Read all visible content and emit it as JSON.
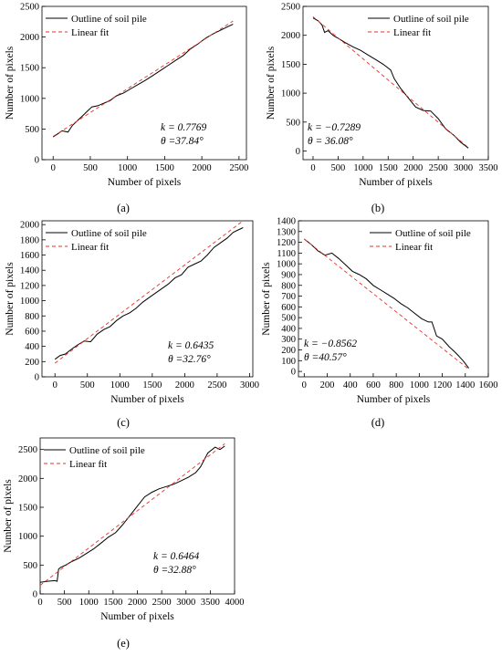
{
  "chart_data": [
    {
      "panel": "(a)",
      "type": "line",
      "xlabel": "Number of pixels",
      "ylabel": "Number of pixels",
      "xlim": [
        -150,
        2600
      ],
      "ylim": [
        0,
        2500
      ],
      "xticks": [
        0,
        500,
        1000,
        1500,
        2000,
        2500
      ],
      "yticks": [
        0,
        500,
        1000,
        1500,
        2000,
        2500
      ],
      "legend": [
        "Outline of soil pile",
        "Linear fit"
      ],
      "legend_position": "top-left",
      "annotation": {
        "k": "k = 0.7769",
        "theta": "θ =37.84°"
      },
      "series": [
        {
          "name": "Outline of soil pile",
          "x": [
            0,
            60,
            120,
            200,
            260,
            330,
            400,
            460,
            520,
            600,
            680,
            760,
            850,
            950,
            1050,
            1150,
            1250,
            1350,
            1450,
            1550,
            1650,
            1750,
            1850,
            1950,
            2050,
            2150,
            2250,
            2350,
            2420
          ],
          "y": [
            370,
            420,
            470,
            450,
            560,
            640,
            720,
            790,
            860,
            880,
            920,
            960,
            1040,
            1090,
            1160,
            1230,
            1300,
            1380,
            1460,
            1540,
            1620,
            1700,
            1810,
            1890,
            1980,
            2050,
            2110,
            2170,
            2210
          ]
        },
        {
          "name": "Linear fit",
          "x": [
            0,
            2420
          ],
          "y": [
            380,
            2260
          ]
        }
      ]
    },
    {
      "panel": "(b)",
      "type": "line",
      "xlabel": "Number of pixels",
      "ylabel": "Number of pixels",
      "xlim": [
        -200,
        3500
      ],
      "ylim": [
        -150,
        2500
      ],
      "xticks": [
        0,
        500,
        1000,
        1500,
        2000,
        2500,
        3000,
        3500
      ],
      "yticks": [
        0,
        500,
        1000,
        1500,
        2000,
        2500
      ],
      "legend": [
        "Outline of soil pile",
        "Linear fit"
      ],
      "legend_position": "top-right",
      "annotation": {
        "k": "k = −0.7289",
        "theta": "θ = 36.08°"
      },
      "series": [
        {
          "name": "Outline of soil pile",
          "x": [
            0,
            100,
            180,
            230,
            300,
            400,
            500,
            650,
            800,
            950,
            1100,
            1250,
            1400,
            1550,
            1620,
            1750,
            1900,
            2050,
            2200,
            2350,
            2500,
            2650,
            2800,
            2950,
            3100
          ],
          "y": [
            2300,
            2250,
            2180,
            2050,
            2080,
            2000,
            1950,
            1870,
            1800,
            1740,
            1660,
            1580,
            1500,
            1400,
            1250,
            1080,
            920,
            760,
            700,
            690,
            560,
            380,
            280,
            150,
            50
          ]
        },
        {
          "name": "Linear fit",
          "x": [
            0,
            3100
          ],
          "y": [
            2320,
            60
          ]
        }
      ]
    },
    {
      "panel": "(c)",
      "type": "line",
      "xlabel": "Number of pixels",
      "ylabel": "Number of pixels",
      "xlim": [
        -200,
        3050
      ],
      "ylim": [
        0,
        2050
      ],
      "xticks": [
        0,
        500,
        1000,
        1500,
        2000,
        2500,
        3000
      ],
      "yticks": [
        0,
        200,
        400,
        600,
        800,
        1000,
        1200,
        1400,
        1600,
        1800,
        2000
      ],
      "legend": [
        "Outline of soil pile",
        "Linear fit"
      ],
      "legend_position": "top-left",
      "annotation": {
        "k": "k = 0.6435",
        "theta": "θ =32.76°"
      },
      "series": [
        {
          "name": "Outline of soil pile",
          "x": [
            0,
            80,
            160,
            250,
            350,
            450,
            550,
            650,
            750,
            850,
            950,
            1050,
            1150,
            1250,
            1350,
            1450,
            1550,
            1650,
            1750,
            1850,
            1950,
            2050,
            2150,
            2250,
            2350,
            2450,
            2550,
            2650,
            2750,
            2900
          ],
          "y": [
            230,
            280,
            300,
            360,
            420,
            470,
            460,
            560,
            620,
            660,
            740,
            800,
            840,
            900,
            980,
            1040,
            1100,
            1160,
            1220,
            1300,
            1340,
            1440,
            1480,
            1520,
            1600,
            1700,
            1760,
            1820,
            1900,
            1960
          ]
        },
        {
          "name": "Linear fit",
          "x": [
            0,
            2900
          ],
          "y": [
            180,
            2050
          ]
        }
      ]
    },
    {
      "panel": "(d)",
      "type": "line",
      "xlabel": "Number of pixels",
      "ylabel": "Number of pixels",
      "xlim": [
        -50,
        1600
      ],
      "ylim": [
        -50,
        1400
      ],
      "xticks": [
        0,
        200,
        400,
        600,
        800,
        1000,
        1200,
        1400,
        1600
      ],
      "yticks": [
        0,
        100,
        200,
        300,
        400,
        500,
        600,
        700,
        800,
        900,
        1000,
        1100,
        1200,
        1300,
        1400
      ],
      "legend": [
        "Outline of soil pile",
        "Linear fit"
      ],
      "legend_position": "top-right",
      "annotation": {
        "k": "k = −0.8562",
        "theta": "θ =40.57°"
      },
      "series": [
        {
          "name": "Outline of soil pile",
          "x": [
            0,
            60,
            120,
            180,
            240,
            300,
            360,
            420,
            480,
            540,
            600,
            660,
            720,
            780,
            840,
            900,
            960,
            1020,
            1080,
            1110,
            1150,
            1200,
            1260,
            1320,
            1380,
            1430
          ],
          "y": [
            1230,
            1180,
            1120,
            1080,
            1100,
            1050,
            990,
            930,
            900,
            860,
            800,
            760,
            720,
            680,
            630,
            590,
            540,
            490,
            460,
            460,
            330,
            300,
            230,
            170,
            100,
            30
          ]
        },
        {
          "name": "Linear fit",
          "x": [
            0,
            1430
          ],
          "y": [
            1230,
            20
          ]
        }
      ]
    },
    {
      "panel": "(e)",
      "type": "line",
      "xlabel": "Number of pixels",
      "ylabel": "Number of pixels",
      "xlim": [
        0,
        4000
      ],
      "ylim": [
        0,
        2700
      ],
      "xticks": [
        0,
        500,
        1000,
        1500,
        2000,
        2500,
        3000,
        3500,
        4000
      ],
      "yticks": [
        0,
        500,
        1000,
        1500,
        2000,
        2500
      ],
      "legend": [
        "Outline of soil pile",
        "Linear fit"
      ],
      "legend_position": "top-left",
      "annotation": {
        "k": "k = 0.6464",
        "theta": "θ =32.88°"
      },
      "series": [
        {
          "name": "Outline of soil pile",
          "x": [
            0,
            150,
            300,
            350,
            380,
            420,
            500,
            650,
            800,
            950,
            1100,
            1250,
            1400,
            1550,
            1700,
            1850,
            2000,
            2150,
            2300,
            2450,
            2600,
            2750,
            2900,
            3050,
            3200,
            3300,
            3450,
            3600,
            3700,
            3800
          ],
          "y": [
            200,
            220,
            230,
            220,
            430,
            460,
            490,
            560,
            620,
            700,
            780,
            880,
            980,
            1060,
            1200,
            1360,
            1520,
            1680,
            1760,
            1820,
            1860,
            1900,
            1960,
            2020,
            2100,
            2200,
            2440,
            2540,
            2500,
            2560
          ]
        },
        {
          "name": "Linear fit",
          "x": [
            0,
            3800
          ],
          "y": [
            150,
            2600
          ]
        }
      ]
    }
  ],
  "captions": [
    "(a)",
    "(b)",
    "(c)",
    "(d)",
    "(e)"
  ]
}
